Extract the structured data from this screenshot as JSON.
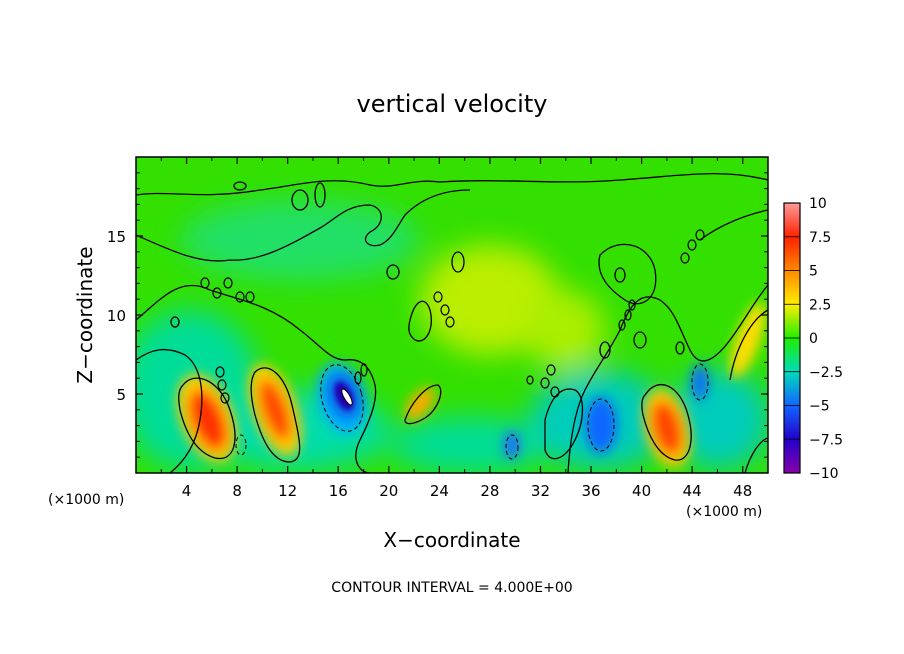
{
  "chart_data": {
    "type": "heatmap",
    "title": "vertical velocity",
    "xlabel": "X−coordinate",
    "ylabel": "Z−coordinate",
    "x_unit_label": "(×1000 m)",
    "x_unit_label_right": "(×1000 m)",
    "x_ticks": [
      4,
      8,
      12,
      16,
      20,
      24,
      28,
      32,
      36,
      40,
      44,
      48
    ],
    "y_ticks": [
      5,
      10,
      15
    ],
    "xlim": [
      0,
      50
    ],
    "ylim": [
      0,
      20
    ],
    "footer": "CONTOUR INTERVAL = 4.000E+00",
    "colorbar": {
      "range": [
        -10,
        10
      ],
      "tick_values": [
        10,
        7.5,
        5,
        2.5,
        0,
        -2.5,
        -5,
        -7.5,
        -10
      ],
      "tick_labels": [
        "10",
        "7.5",
        "5",
        "2.5",
        "0",
        "−2.5",
        "−5",
        "−7.5",
        "−10"
      ],
      "colors": [
        "#ff9999",
        "#ff2200",
        "#ff8800",
        "#ffee00",
        "#22ee00",
        "#00ddbb",
        "#1166ff",
        "#2200cc",
        "#8800aa"
      ]
    },
    "features": [
      {
        "kind": "updraft",
        "x": 5.8,
        "z": 3.5,
        "value": 8
      },
      {
        "kind": "updraft",
        "x": 11.0,
        "z": 3.8,
        "value": 7
      },
      {
        "kind": "downdraft",
        "x": 16.5,
        "z": 5.0,
        "value": -8
      },
      {
        "kind": "updraft",
        "x": 16.9,
        "z": 4.9,
        "value": 6
      },
      {
        "kind": "updraft",
        "x": 22.8,
        "z": 4.2,
        "value": 4
      },
      {
        "kind": "downdraft",
        "x": 29.8,
        "z": 1.5,
        "value": -5
      },
      {
        "kind": "downdraft",
        "x": 37.0,
        "z": 3.0,
        "value": -5
      },
      {
        "kind": "updraft",
        "x": 41.8,
        "z": 2.9,
        "value": 8
      },
      {
        "kind": "downdraft",
        "x": 44.6,
        "z": 5.8,
        "value": -6
      },
      {
        "kind": "updraft",
        "x": 27.0,
        "z": 11.0,
        "value": 2.5
      }
    ]
  }
}
